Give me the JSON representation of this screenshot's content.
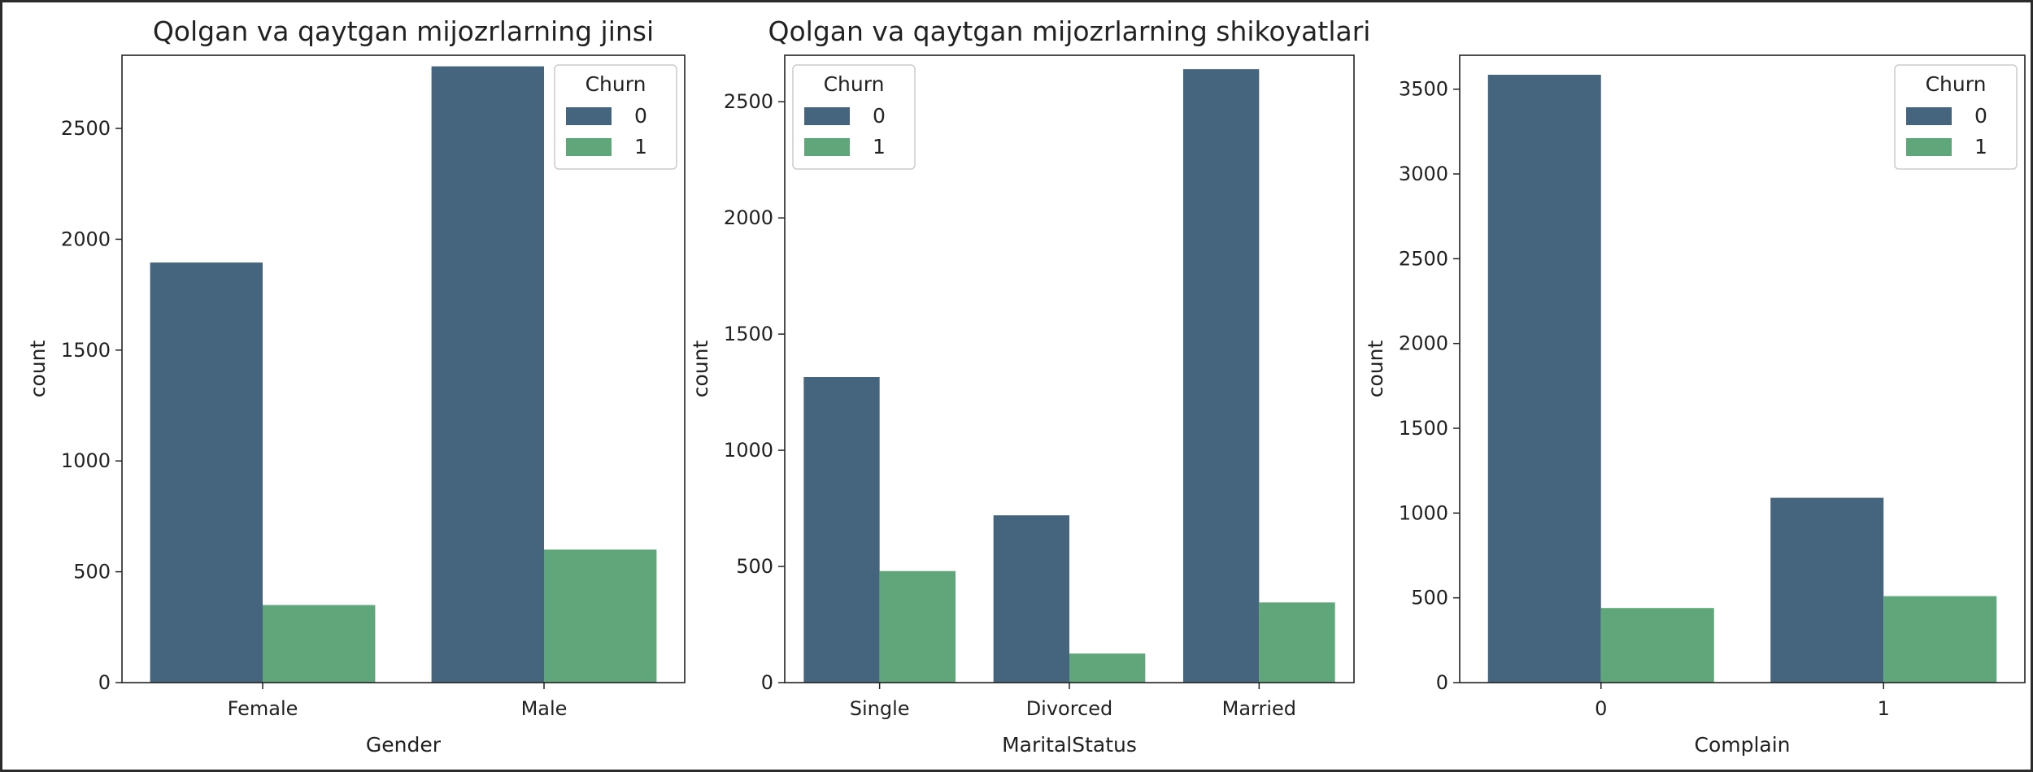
{
  "chart_data": [
    {
      "type": "bar",
      "title": "Qolgan va qaytgan mijozrlarning jinsi",
      "xlabel": "Gender",
      "ylabel": "count",
      "categories": [
        "Female",
        "Male"
      ],
      "series": [
        {
          "name": "0",
          "values": [
            1895,
            2780
          ]
        },
        {
          "name": "1",
          "values": [
            350,
            600
          ]
        }
      ],
      "ylim": [
        0,
        2830
      ],
      "yticks": [
        0,
        500,
        1000,
        1500,
        2000,
        2500
      ],
      "legend": {
        "title": "Churn",
        "position": "top-right"
      }
    },
    {
      "type": "bar",
      "title": "Qolgan va qaytgan mijozrlarning shikoyatlari",
      "xlabel": "MaritalStatus",
      "ylabel": "count",
      "categories": [
        "Single",
        "Divorced",
        "Married"
      ],
      "series": [
        {
          "name": "0",
          "values": [
            1315,
            720,
            2640
          ]
        },
        {
          "name": "1",
          "values": [
            480,
            125,
            345
          ]
        }
      ],
      "ylim": [
        0,
        2700
      ],
      "yticks": [
        0,
        500,
        1000,
        1500,
        2000,
        2500
      ],
      "legend": {
        "title": "Churn",
        "position": "top-left"
      }
    },
    {
      "type": "bar",
      "title": "",
      "xlabel": "Complain",
      "ylabel": "count",
      "categories": [
        "0",
        "1"
      ],
      "series": [
        {
          "name": "0",
          "values": [
            3585,
            1090
          ]
        },
        {
          "name": "1",
          "values": [
            440,
            510
          ]
        }
      ],
      "ylim": [
        0,
        3700
      ],
      "yticks": [
        0,
        500,
        1000,
        1500,
        2000,
        2500,
        3000,
        3500
      ],
      "legend": {
        "title": "Churn",
        "position": "top-right"
      }
    }
  ],
  "colors": {
    "series_0": "#45657f",
    "series_1": "#5fa77a",
    "axis": "#222222"
  }
}
